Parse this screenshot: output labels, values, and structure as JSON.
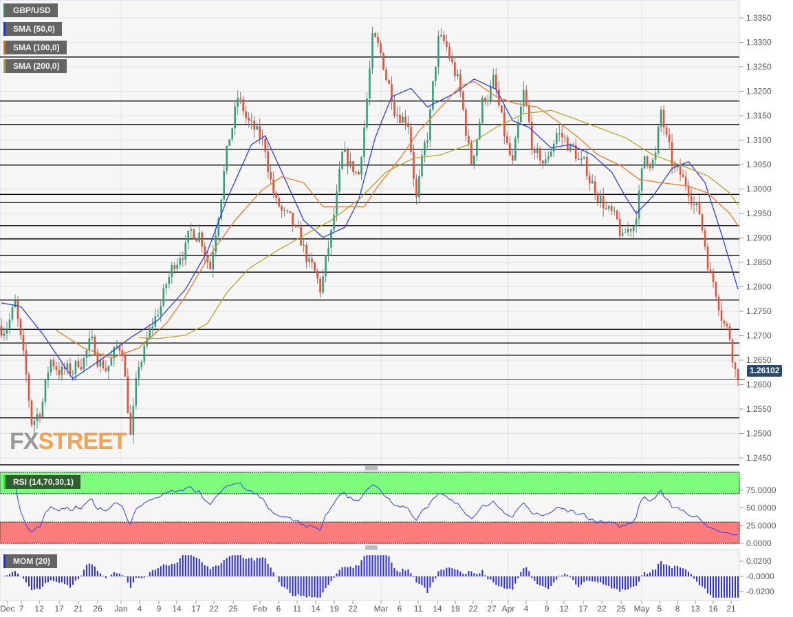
{
  "legend": {
    "symbol": "GBP/USD",
    "sma50": "SMA (50,0)",
    "sma100": "SMA (100,0)",
    "sma200": "SMA (200,0)",
    "rsi": "RSI (14,70,30,1)",
    "mom": "MOM (20)"
  },
  "logo": {
    "fx": "FX",
    "street": "STREET"
  },
  "current_price": "1.26102",
  "colors": {
    "up": "#3a9a7a",
    "down": "#d9553d",
    "sma50": "#2a3ff0",
    "sma100": "#f07a25",
    "sma200": "#b5a42a",
    "rsi_line": "#2a3ff0",
    "mom": "#2a2af5",
    "overbought": "#7dfc7d",
    "oversold": "#fc7b7b",
    "price_tag": "#2b4a70",
    "logo_fx": "#7a7a7a",
    "logo_street": "#f08a1c"
  },
  "chart_data": [
    {
      "type": "candlestick",
      "title": "GBP/USD",
      "x_tick_labels": [
        "Dec",
        "7",
        "12",
        "17",
        "21",
        "26",
        "Jan",
        "4",
        "9",
        "14",
        "17",
        "22",
        "25",
        "Feb",
        "6",
        "11",
        "14",
        "19",
        "22",
        "Mar",
        "6",
        "11",
        "14",
        "19",
        "22",
        "27",
        "Apr",
        "4",
        "9",
        "12",
        "17",
        "22",
        "25",
        "May",
        "5",
        "8",
        "13",
        "16",
        "21"
      ],
      "y_tick_labels": [
        "1.3350",
        "1.3300",
        "1.3250",
        "1.3200",
        "1.3150",
        "1.3100",
        "1.3050",
        "1.3000",
        "1.2950",
        "1.2900",
        "1.2850",
        "1.2800",
        "1.2750",
        "1.2700",
        "1.2650",
        "1.2600",
        "1.2550",
        "1.2500",
        "1.2450"
      ],
      "ylim": [
        1.2435,
        1.3385
      ],
      "price_path_by_bar": [
        [
          0,
          1.272
        ],
        [
          5,
          1.276
        ],
        [
          11,
          1.252
        ],
        [
          14,
          1.255
        ],
        [
          18,
          1.265
        ],
        [
          25,
          1.262
        ],
        [
          32,
          1.268
        ],
        [
          38,
          1.264
        ],
        [
          44,
          1.268
        ],
        [
          47,
          1.25
        ],
        [
          50,
          1.263
        ],
        [
          57,
          1.275
        ],
        [
          65,
          1.288
        ],
        [
          72,
          1.292
        ],
        [
          76,
          1.285
        ],
        [
          81,
          1.305
        ],
        [
          86,
          1.318
        ],
        [
          91,
          1.312
        ],
        [
          96,
          1.308
        ],
        [
          100,
          1.297
        ],
        [
          105,
          1.292
        ],
        [
          110,
          1.287
        ],
        [
          116,
          1.279
        ],
        [
          120,
          1.29
        ],
        [
          124,
          1.305
        ],
        [
          130,
          1.303
        ],
        [
          135,
          1.33
        ],
        [
          139,
          1.325
        ],
        [
          143,
          1.318
        ],
        [
          148,
          1.315
        ],
        [
          151,
          1.299
        ],
        [
          155,
          1.31
        ],
        [
          159,
          1.33
        ],
        [
          162,
          1.328
        ],
        [
          166,
          1.322
        ],
        [
          171,
          1.305
        ],
        [
          175,
          1.318
        ],
        [
          179,
          1.322
        ],
        [
          183,
          1.31
        ],
        [
          186,
          1.304
        ],
        [
          190,
          1.318
        ],
        [
          194,
          1.306
        ],
        [
          198,
          1.305
        ],
        [
          202,
          1.312
        ],
        [
          208,
          1.308
        ],
        [
          213,
          1.303
        ],
        [
          218,
          1.299
        ],
        [
          222,
          1.294
        ],
        [
          226,
          1.289
        ],
        [
          230,
          1.293
        ],
        [
          234,
          1.306
        ],
        [
          238,
          1.307
        ],
        [
          240,
          1.315
        ],
        [
          244,
          1.304
        ],
        [
          248,
          1.301
        ],
        [
          251,
          1.3
        ],
        [
          254,
          1.295
        ],
        [
          258,
          1.283
        ],
        [
          261,
          1.278
        ],
        [
          265,
          1.27
        ],
        [
          268,
          1.261
        ]
      ],
      "horizontal_levels": [
        1.327,
        1.318,
        1.3132,
        1.3081,
        1.3049,
        1.2989,
        1.2972,
        1.2925,
        1.2898,
        1.2864,
        1.283,
        1.2773,
        1.2713,
        1.2685,
        1.266,
        1.2532
      ],
      "last_price": 1.26102,
      "series": [
        {
          "name": "SMA (50,0)",
          "points": [
            [
              0,
              1.2767
            ],
            [
              7,
              1.276
            ],
            [
              15,
              1.2704
            ],
            [
              26,
              1.2612
            ],
            [
              37,
              1.2654
            ],
            [
              47,
              1.2696
            ],
            [
              57,
              1.2732
            ],
            [
              67,
              1.2795
            ],
            [
              75,
              1.2873
            ],
            [
              82,
              1.2978
            ],
            [
              91,
              1.3091
            ],
            [
              96,
              1.3109
            ],
            [
              102,
              1.3035
            ],
            [
              110,
              1.2936
            ],
            [
              117,
              1.2901
            ],
            [
              125,
              1.2922
            ],
            [
              130,
              1.2978
            ],
            [
              136,
              1.3105
            ],
            [
              142,
              1.3189
            ],
            [
              149,
              1.3206
            ],
            [
              155,
              1.3168
            ],
            [
              165,
              1.3196
            ],
            [
              172,
              1.3225
            ],
            [
              180,
              1.3204
            ],
            [
              186,
              1.314
            ],
            [
              192,
              1.3126
            ],
            [
              200,
              1.3084
            ],
            [
              207,
              1.3091
            ],
            [
              215,
              1.307
            ],
            [
              222,
              1.3035
            ],
            [
              227,
              1.2985
            ],
            [
              231,
              1.295
            ],
            [
              237,
              1.2985
            ],
            [
              244,
              1.3042
            ],
            [
              250,
              1.3056
            ],
            [
              256,
              1.3013
            ],
            [
              262,
              1.2908
            ],
            [
              268,
              1.2795
            ]
          ]
        },
        {
          "name": "SMA (100,0)",
          "points": [
            [
              20,
              1.2711
            ],
            [
              30,
              1.2675
            ],
            [
              40,
              1.2654
            ],
            [
              50,
              1.2675
            ],
            [
              60,
              1.2725
            ],
            [
              67,
              1.2781
            ],
            [
              75,
              1.2858
            ],
            [
              85,
              1.2936
            ],
            [
              95,
              1.2999
            ],
            [
              102,
              1.3025
            ],
            [
              110,
              1.3013
            ],
            [
              117,
              1.2964
            ],
            [
              125,
              1.2964
            ],
            [
              132,
              1.2964
            ],
            [
              137,
              1.3006
            ],
            [
              145,
              1.3063
            ],
            [
              152,
              1.3119
            ],
            [
              160,
              1.3168
            ],
            [
              167,
              1.3211
            ],
            [
              172,
              1.322
            ],
            [
              180,
              1.3189
            ],
            [
              187,
              1.3175
            ],
            [
              195,
              1.3168
            ],
            [
              202,
              1.314
            ],
            [
              210,
              1.3105
            ],
            [
              217,
              1.307
            ],
            [
              225,
              1.3049
            ],
            [
              232,
              1.302
            ],
            [
              240,
              1.3013
            ],
            [
              250,
              1.3006
            ],
            [
              257,
              1.2992
            ],
            [
              265,
              1.295
            ],
            [
              268,
              1.2925
            ]
          ]
        },
        {
          "name": "SMA (200,0)",
          "points": [
            [
              50,
              1.2696
            ],
            [
              57,
              1.2694
            ],
            [
              67,
              1.2701
            ],
            [
              75,
              1.2725
            ],
            [
              82,
              1.2788
            ],
            [
              90,
              1.2837
            ],
            [
              100,
              1.2873
            ],
            [
              110,
              1.2905
            ],
            [
              120,
              1.2936
            ],
            [
              130,
              1.2978
            ],
            [
              140,
              1.3035
            ],
            [
              150,
              1.3063
            ],
            [
              160,
              1.307
            ],
            [
              170,
              1.3091
            ],
            [
              180,
              1.3126
            ],
            [
              190,
              1.3154
            ],
            [
              200,
              1.3161
            ],
            [
              207,
              1.3147
            ],
            [
              217,
              1.3126
            ],
            [
              227,
              1.3105
            ],
            [
              237,
              1.307
            ],
            [
              247,
              1.3049
            ],
            [
              257,
              1.3027
            ],
            [
              265,
              1.2992
            ],
            [
              268,
              1.2967
            ]
          ]
        }
      ]
    },
    {
      "type": "line",
      "title": "RSI (14,70,30,1)",
      "ylim": [
        0,
        100
      ],
      "levels": [
        70,
        30
      ],
      "y_tick_labels": [
        "75.0000",
        "50.0000",
        "25.0000",
        "0.0000"
      ]
    },
    {
      "type": "bar",
      "title": "MOM (20)",
      "ylim": [
        -0.03,
        0.03
      ],
      "y_tick_labels": [
        "0.0200",
        "-0.0000",
        "-0.0200"
      ]
    }
  ]
}
